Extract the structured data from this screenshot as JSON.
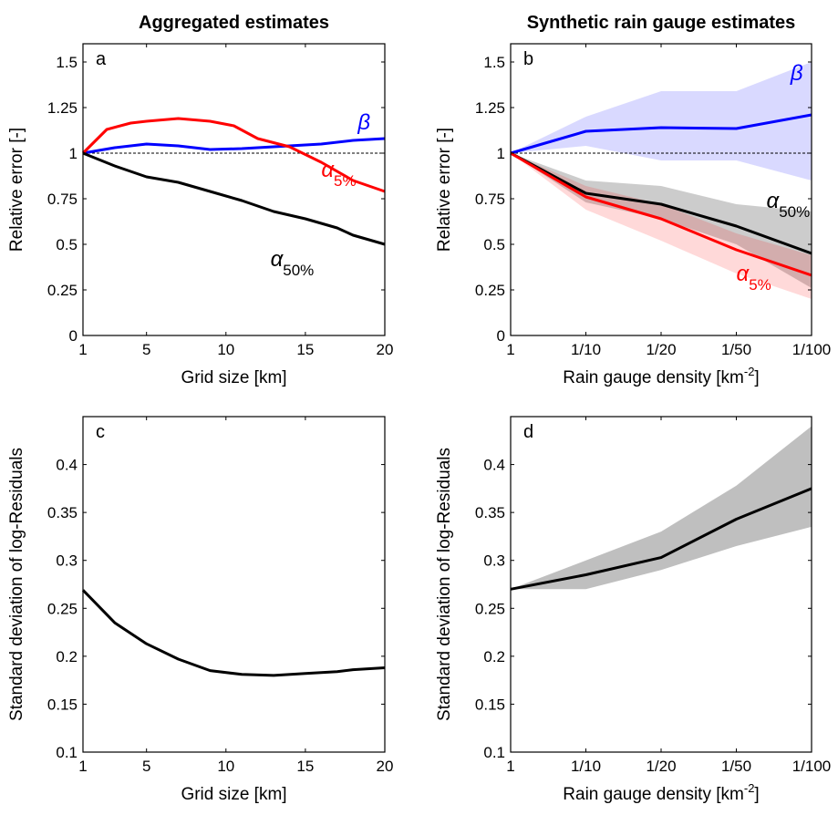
{
  "chart_data": [
    {
      "panel_label": "a",
      "type": "line",
      "title": "Aggregated estimates",
      "xlabel": "Grid size [km]",
      "ylabel": "Relative error [-]",
      "xlim": [
        1,
        20
      ],
      "ylim": [
        0,
        1.6
      ],
      "xticks": [
        1,
        5,
        10,
        15,
        20
      ],
      "xtick_labels": [
        "1",
        "5",
        "10",
        "15",
        "20"
      ],
      "yticks": [
        0,
        0.25,
        0.5,
        0.75,
        1,
        1.25,
        1.5
      ],
      "ytick_labels": [
        "0",
        "0.25",
        "0.5",
        "0.75",
        "1",
        "1.25",
        "1.5"
      ],
      "reference_line": 1,
      "series": [
        {
          "name": "β",
          "color": "#0000ff",
          "x": [
            1,
            3,
            5,
            7,
            9,
            11,
            13,
            16,
            18,
            20
          ],
          "y": [
            1.0,
            1.03,
            1.05,
            1.04,
            1.02,
            1.025,
            1.035,
            1.05,
            1.07,
            1.08
          ]
        },
        {
          "name": "α 5%",
          "color": "#ff0000",
          "x": [
            1,
            2.5,
            4,
            5,
            7,
            9,
            10.5,
            12,
            14,
            16,
            18,
            20
          ],
          "y": [
            1.0,
            1.13,
            1.165,
            1.175,
            1.19,
            1.175,
            1.15,
            1.08,
            1.035,
            0.95,
            0.85,
            0.79
          ]
        },
        {
          "name": "α 50%",
          "color": "#000000",
          "x": [
            1,
            3,
            5,
            7,
            9,
            11,
            13,
            15,
            17,
            18,
            20
          ],
          "y": [
            1.0,
            0.93,
            0.87,
            0.84,
            0.79,
            0.74,
            0.68,
            0.64,
            0.59,
            0.55,
            0.5
          ]
        }
      ],
      "annotations": [
        {
          "text": "β",
          "sub": "",
          "color": "#0000ff",
          "x": 18.3,
          "y": 1.13
        },
        {
          "text": "α",
          "sub": "5%",
          "color": "#ff0000",
          "x": 16.0,
          "y": 0.87
        },
        {
          "text": "α",
          "sub": "50%",
          "color": "#000000",
          "x": 12.8,
          "y": 0.38
        }
      ]
    },
    {
      "panel_label": "b",
      "type": "line",
      "title": "Synthetic rain gauge estimates",
      "xlabel": "Rain gauge density [km",
      "xlabel_sup": "-2",
      "xlabel_end": "]",
      "ylabel": "Relative error [-]",
      "xlim": [
        0,
        4
      ],
      "ylim": [
        0,
        1.6
      ],
      "xticks": [
        0,
        1,
        2,
        3,
        4
      ],
      "xtick_labels": [
        "1",
        "1/10",
        "1/20",
        "1/50",
        "1/100"
      ],
      "yticks": [
        0,
        0.25,
        0.5,
        0.75,
        1,
        1.25,
        1.5
      ],
      "ytick_labels": [
        "0",
        "0.25",
        "0.5",
        "0.75",
        "1",
        "1.25",
        "1.5"
      ],
      "reference_line": 1,
      "bands": [
        {
          "color": "#0000ff",
          "opacity": 0.15,
          "x": [
            0,
            1,
            2,
            3,
            4
          ],
          "upper": [
            1.0,
            1.2,
            1.34,
            1.34,
            1.5
          ],
          "lower": [
            1.0,
            1.04,
            0.96,
            0.96,
            0.85
          ]
        },
        {
          "color": "#000000",
          "opacity": 0.2,
          "x": [
            0,
            1,
            2,
            3,
            4
          ],
          "upper": [
            1.0,
            0.85,
            0.82,
            0.72,
            0.68
          ],
          "lower": [
            1.0,
            0.73,
            0.64,
            0.5,
            0.26
          ]
        },
        {
          "color": "#ff0000",
          "opacity": 0.15,
          "x": [
            0,
            1,
            2,
            3,
            4
          ],
          "upper": [
            1.0,
            0.82,
            0.72,
            0.56,
            0.44
          ],
          "lower": [
            1.0,
            0.69,
            0.52,
            0.34,
            0.2
          ]
        }
      ],
      "series": [
        {
          "name": "β",
          "color": "#0000ff",
          "x": [
            0,
            1,
            2,
            3,
            4
          ],
          "y": [
            1.0,
            1.12,
            1.14,
            1.135,
            1.21
          ]
        },
        {
          "name": "α 50%",
          "color": "#000000",
          "x": [
            0,
            1,
            2,
            3,
            4
          ],
          "y": [
            1.0,
            0.78,
            0.72,
            0.6,
            0.45
          ]
        },
        {
          "name": "α 5%",
          "color": "#ff0000",
          "x": [
            0,
            1,
            2,
            3,
            4
          ],
          "y": [
            1.0,
            0.76,
            0.64,
            0.47,
            0.33
          ]
        }
      ],
      "annotations": [
        {
          "text": "β",
          "sub": "",
          "color": "#0000ff",
          "x": 3.72,
          "y": 1.4
        },
        {
          "text": "α",
          "sub": "50%",
          "color": "#000000",
          "x": 3.4,
          "y": 0.7
        },
        {
          "text": "α",
          "sub": "5%",
          "color": "#ff0000",
          "x": 3.0,
          "y": 0.3
        }
      ]
    },
    {
      "panel_label": "c",
      "type": "line",
      "title": "",
      "xlabel": "Grid size [km]",
      "ylabel": "Standard deviation of log-Residuals",
      "xlim": [
        1,
        20
      ],
      "ylim": [
        0.1,
        0.45
      ],
      "xticks": [
        1,
        5,
        10,
        15,
        20
      ],
      "xtick_labels": [
        "1",
        "5",
        "10",
        "15",
        "20"
      ],
      "yticks": [
        0.1,
        0.15,
        0.2,
        0.25,
        0.3,
        0.35,
        0.4
      ],
      "ytick_labels": [
        "0.1",
        "0.15",
        "0.2",
        "0.25",
        "0.3",
        "0.35",
        "0.4"
      ],
      "series": [
        {
          "name": "",
          "color": "#000000",
          "x": [
            1,
            3,
            5,
            7,
            9,
            11,
            13,
            15,
            17,
            18,
            20
          ],
          "y": [
            0.269,
            0.235,
            0.213,
            0.197,
            0.185,
            0.181,
            0.18,
            0.182,
            0.184,
            0.186,
            0.188
          ]
        }
      ],
      "annotations": []
    },
    {
      "panel_label": "d",
      "type": "line",
      "title": "",
      "xlabel": "Rain gauge density [km",
      "xlabel_sup": "-2",
      "xlabel_end": "]",
      "ylabel": "Standard deviation of log-Residuals",
      "xlim": [
        0,
        4
      ],
      "ylim": [
        0.1,
        0.45
      ],
      "xticks": [
        0,
        1,
        2,
        3,
        4
      ],
      "xtick_labels": [
        "1",
        "1/10",
        "1/20",
        "1/50",
        "1/100"
      ],
      "yticks": [
        0.1,
        0.15,
        0.2,
        0.25,
        0.3,
        0.35,
        0.4
      ],
      "ytick_labels": [
        "0.1",
        "0.15",
        "0.2",
        "0.25",
        "0.3",
        "0.35",
        "0.4"
      ],
      "bands": [
        {
          "color": "#000000",
          "opacity": 0.25,
          "x": [
            0,
            1,
            2,
            3,
            4
          ],
          "upper": [
            0.27,
            0.3,
            0.33,
            0.378,
            0.44
          ],
          "lower": [
            0.27,
            0.27,
            0.29,
            0.315,
            0.335
          ]
        }
      ],
      "series": [
        {
          "name": "",
          "color": "#000000",
          "x": [
            0,
            1,
            2,
            3,
            4
          ],
          "y": [
            0.27,
            0.285,
            0.303,
            0.343,
            0.375
          ]
        }
      ],
      "annotations": []
    }
  ]
}
